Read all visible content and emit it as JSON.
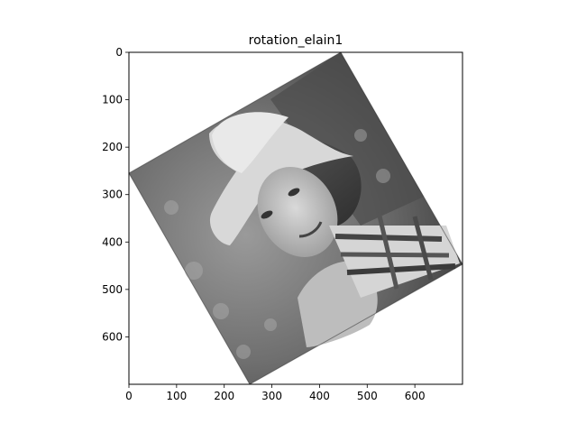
{
  "figure": {
    "title": "rotation_elain1",
    "image_description_hidden": "",
    "x_ticks": [
      "0",
      "100",
      "200",
      "300",
      "400",
      "500",
      "600"
    ],
    "y_ticks": [
      "0",
      "100",
      "200",
      "300",
      "400",
      "500",
      "600"
    ],
    "x_limits": [
      0,
      700
    ],
    "y_limits": [
      0,
      700
    ],
    "rotated_image_corners": [
      [
        445,
        0
      ],
      [
        700,
        445
      ],
      [
        255,
        700
      ],
      [
        0,
        255
      ]
    ]
  }
}
